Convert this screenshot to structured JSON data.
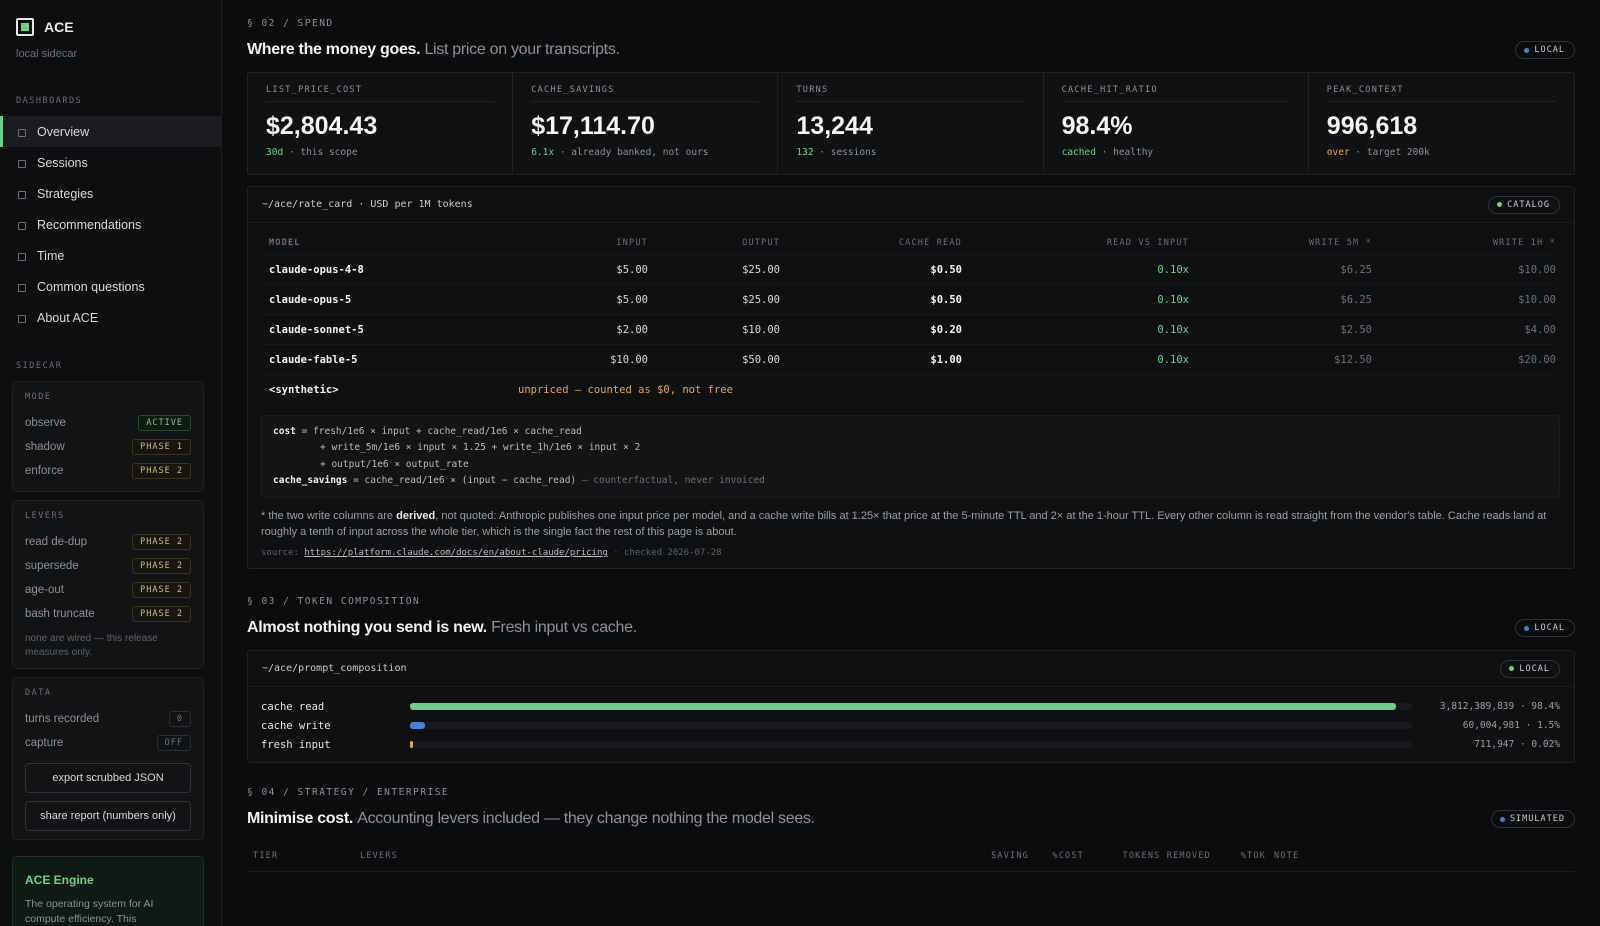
{
  "sidebar": {
    "brand": "ACE",
    "subtitle": "local sidecar",
    "dashboards_label": "DASHBOARDS",
    "nav": [
      "Overview",
      "Sessions",
      "Strategies",
      "Recommendations",
      "Time",
      "Common questions",
      "About ACE"
    ],
    "sidecar_label": "SIDECAR",
    "mode": {
      "label": "MODE",
      "items": [
        {
          "name": "observe",
          "tag": "ACTIVE"
        },
        {
          "name": "shadow",
          "tag": "PHASE 1"
        },
        {
          "name": "enforce",
          "tag": "PHASE 2"
        }
      ]
    },
    "levers": {
      "label": "LEVERS",
      "items": [
        {
          "name": "read de-dup",
          "tag": "PHASE 2"
        },
        {
          "name": "supersede",
          "tag": "PHASE 2"
        },
        {
          "name": "age-out",
          "tag": "PHASE 2"
        },
        {
          "name": "bash truncate",
          "tag": "PHASE 2"
        }
      ],
      "note": "none are wired — this release measures only."
    },
    "data": {
      "label": "DATA",
      "items": [
        {
          "name": "turns recorded",
          "tag": "0"
        },
        {
          "name": "capture",
          "tag": "OFF"
        }
      ],
      "buttons": [
        "export scrubbed JSON",
        "share report (numbers only)"
      ]
    },
    "engine": {
      "title": "ACE Engine",
      "text": "The operating system for AI compute efficiency. This"
    }
  },
  "spend": {
    "eyebrow": "§ 02 / SPEND",
    "title": "Where the money goes.",
    "subtitle": "List price on your transcripts.",
    "badge": "LOCAL",
    "kpis": [
      {
        "label": "LIST_PRICE_COST",
        "value": "$2,804.43",
        "accent": "30d",
        "note": "· this scope"
      },
      {
        "label": "CACHE_SAVINGS",
        "value": "$17,114.70",
        "accent": "6.1x",
        "note": "· already banked, not ours"
      },
      {
        "label": "TURNS",
        "value": "13,244",
        "accent": "132",
        "note": "· sessions"
      },
      {
        "label": "CACHE_HIT_RATIO",
        "value": "98.4%",
        "accent": "cached",
        "note": "· healthy"
      },
      {
        "label": "PEAK_CONTEXT",
        "value": "996,618",
        "accent": "over",
        "note": "· target 200k"
      }
    ],
    "rate_card": {
      "path": "~/ace/rate_card · USD per 1M tokens",
      "badge": "CATALOG",
      "columns": [
        "MODEL",
        "INPUT",
        "OUTPUT",
        "CACHE READ",
        "READ VS INPUT",
        "WRITE 5M *",
        "WRITE 1H *"
      ],
      "rows": [
        [
          "claude-opus-4-8",
          "$5.00",
          "$25.00",
          "$0.50",
          "0.10x",
          "$6.25",
          "$10.00"
        ],
        [
          "claude-opus-5",
          "$5.00",
          "$25.00",
          "$0.50",
          "0.10x",
          "$6.25",
          "$10.00"
        ],
        [
          "claude-sonnet-5",
          "$2.00",
          "$10.00",
          "$0.20",
          "0.10x",
          "$2.50",
          "$4.00"
        ],
        [
          "claude-fable-5",
          "$10.00",
          "$50.00",
          "$1.00",
          "0.10x",
          "$12.50",
          "$20.00"
        ]
      ],
      "synthetic": {
        "model": "<synthetic>",
        "note": "unpriced — counted as $0, not free"
      },
      "formula": [
        {
          "key": "cost",
          "text": " = fresh/1e6 × input + cache_read/1e6 × cache_read"
        },
        {
          "key": "",
          "text": "+ write_5m/1e6 × input × 1.25 + write_1h/1e6 × input × 2"
        },
        {
          "key": "",
          "text": "+ output/1e6 × output_rate"
        },
        {
          "key": "cache_savings",
          "text": " = cache_read/1e6 × (input − cache_read)",
          "muted": " — counterfactual, never invoiced"
        }
      ],
      "footnote": {
        "before": "* the two write columns are ",
        "bold": "derived",
        "after": ", not quoted: Anthropic publishes one input price per model, and a cache write bills at 1.25× that price at the 5-minute TTL and 2× at the 1-hour TTL. Every other column is read straight from the vendor's table. Cache reads land at roughly a tenth of input across the whole tier, which is the single fact the rest of this page is about."
      },
      "source": {
        "label": "source:",
        "url": "https://platform.claude.com/docs/en/about-claude/pricing",
        "checked": "· checked 2026-07-28"
      }
    }
  },
  "composition": {
    "eyebrow": "§ 03 / TOKEN COMPOSITION",
    "title": "Almost nothing you send is new.",
    "subtitle": "Fresh input vs cache.",
    "badge": "LOCAL",
    "panel": {
      "path": "~/ace/prompt_composition",
      "badge": "LOCAL",
      "rows": [
        {
          "label": "cache read",
          "share": 98.4,
          "value_label": "3,812,389,839 · 98.4%",
          "color": "#6fcf8a"
        },
        {
          "label": "cache write",
          "share": 1.5,
          "value_label": "60,004,981 · 1.5%",
          "color": "#4a7fd4"
        },
        {
          "label": "fresh input",
          "share": 0.02,
          "value_label": "711,947 · 0.02%",
          "color": "#e0a84a"
        }
      ]
    }
  },
  "strategy": {
    "eyebrow": "§ 04 / STRATEGY / ENTERPRISE",
    "title": "Minimise cost.",
    "subtitle": "Accounting levers included — they change nothing the model sees.",
    "badge": "SIMULATED",
    "columns": [
      "TIER",
      "LEVERS",
      "SAVING",
      "%COST",
      "TOKENS REMOVED",
      "%TOK",
      "NOTE"
    ]
  }
}
